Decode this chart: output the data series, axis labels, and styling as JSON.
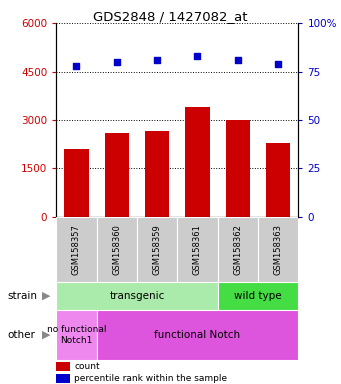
{
  "title": "GDS2848 / 1427082_at",
  "samples": [
    "GSM158357",
    "GSM158360",
    "GSM158359",
    "GSM158361",
    "GSM158362",
    "GSM158363"
  ],
  "counts": [
    2100,
    2600,
    2650,
    3400,
    3000,
    2300
  ],
  "percentiles": [
    78,
    80,
    81,
    83,
    81,
    79
  ],
  "ylim_left": [
    0,
    6000
  ],
  "ylim_right": [
    0,
    100
  ],
  "yticks_left": [
    0,
    1500,
    3000,
    4500,
    6000
  ],
  "ytick_labels_left": [
    "0",
    "1500",
    "3000",
    "4500",
    "6000"
  ],
  "yticks_right": [
    0,
    25,
    50,
    75,
    100
  ],
  "ytick_labels_right": [
    "0",
    "25",
    "50",
    "75",
    "100%"
  ],
  "bar_color": "#cc0000",
  "dot_color": "#0000cc",
  "strain_transgenic_color": "#aaeaaa",
  "strain_wildtype_color": "#44dd44",
  "other_nofunc_color": "#ee88ee",
  "other_func_color": "#dd55dd",
  "left_axis_color": "#cc0000",
  "right_axis_color": "#0000cc",
  "strain_label": "strain",
  "other_label": "other",
  "transgenic_label": "transgenic",
  "wildtype_label": "wild type",
  "nofunc_label": "no functional\nNotch1",
  "func_label": "functional Notch",
  "legend_count_label": "count",
  "legend_pct_label": "percentile rank within the sample",
  "n_transgenic": 4,
  "n_wildtype": 2,
  "n_nofunc": 1,
  "n_func": 5,
  "bg_color": "#ffffff",
  "label_box_color": "#cccccc",
  "arrow_color": "#888888"
}
